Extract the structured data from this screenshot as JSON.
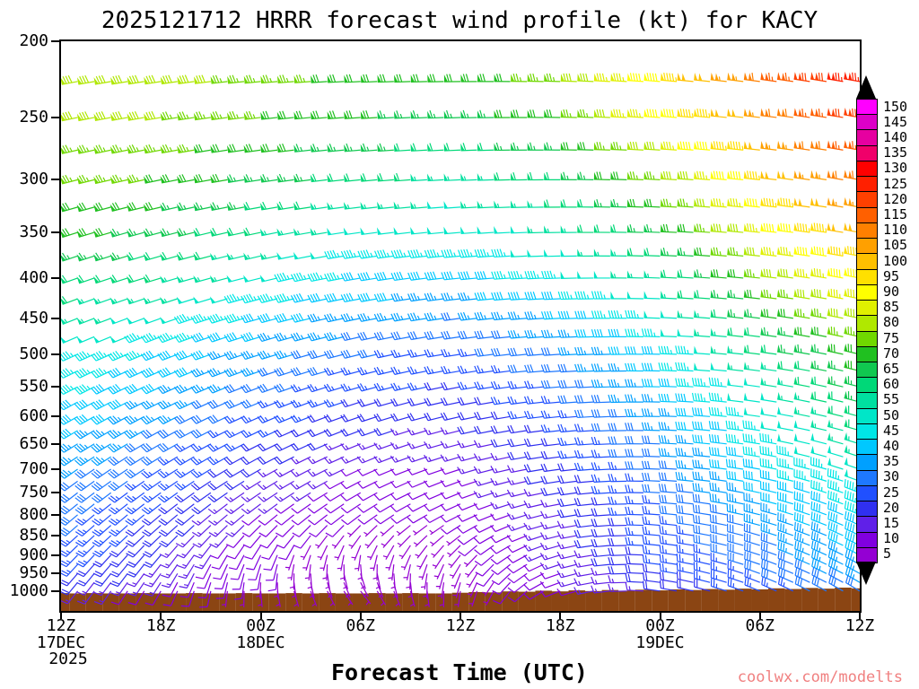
{
  "title": "2025121712 HRRR forecast wind profile (kt) for KACY",
  "watermark": "coolwx.com/modelts",
  "y_axis": {
    "tick_values": [
      200,
      250,
      300,
      350,
      400,
      450,
      500,
      550,
      600,
      650,
      700,
      750,
      800,
      850,
      900,
      950,
      1000
    ],
    "tick_labels": [
      "200",
      "250",
      "300",
      "350",
      "400",
      "450",
      "500",
      "550",
      "600",
      "650",
      "700",
      "750",
      "800",
      "850",
      "900",
      "950",
      "1000"
    ]
  },
  "x_axis": {
    "title": "Forecast Time (UTC)",
    "tick_hours": [
      0,
      6,
      12,
      18,
      24,
      30,
      36,
      42,
      48
    ],
    "tick_labels": [
      "12Z",
      "18Z",
      "00Z",
      "06Z",
      "12Z",
      "18Z",
      "00Z",
      "06Z",
      "12Z"
    ],
    "date_labels": [
      {
        "hour": 0,
        "line1": "17DEC",
        "line2": "2025"
      },
      {
        "hour": 12,
        "line1": "18DEC",
        "line2": ""
      },
      {
        "hour": 36,
        "line1": "19DEC",
        "line2": ""
      }
    ]
  },
  "colorbar": {
    "units": "kt",
    "values": [
      5,
      10,
      15,
      20,
      25,
      30,
      35,
      40,
      45,
      50,
      55,
      60,
      65,
      70,
      75,
      80,
      85,
      90,
      95,
      100,
      105,
      110,
      115,
      120,
      125,
      130,
      135,
      140,
      145,
      150
    ],
    "colors": [
      "#9400D3",
      "#8000E0",
      "#6020E8",
      "#3030F0",
      "#2050FF",
      "#1E78FF",
      "#00A0FF",
      "#00C8FF",
      "#00E6E6",
      "#00E6C8",
      "#00E0A0",
      "#00D878",
      "#10C850",
      "#20C020",
      "#70D800",
      "#B0E800",
      "#E0F000",
      "#FFFF00",
      "#FFE000",
      "#FFC000",
      "#FFA000",
      "#FF8000",
      "#FF6000",
      "#FF4000",
      "#FF2000",
      "#FF0000",
      "#F0006A",
      "#E600A0",
      "#DC00C8",
      "#FF00FF"
    ],
    "over_color": "#000000",
    "under_color": "#000000"
  },
  "terrain_color": "#8B4513",
  "chart_data": {
    "type": "wind-barb-time-height",
    "title": "2025121712 HRRR forecast wind profile (kt) for KACY",
    "model": "HRRR",
    "station": "KACY",
    "init_time": "2025121712",
    "units": "kt",
    "y_scale": "log-pressure",
    "ylim_hpa": [
      200,
      1060
    ],
    "xlim_hours": [
      0,
      48
    ],
    "barb_time_step_hours": 1,
    "barb_level_step_hpa": 25,
    "barb_level_top_hpa": 225,
    "barb_level_bottom_hpa": 1000,
    "x_hours": [
      0,
      6,
      12,
      18,
      24,
      30,
      36,
      42,
      48
    ],
    "x_time_labels": [
      "12Z 17DEC",
      "18Z 17DEC",
      "00Z 18DEC",
      "06Z 18DEC",
      "12Z 18DEC",
      "18Z 18DEC",
      "00Z 19DEC",
      "06Z 19DEC",
      "12Z 19DEC"
    ],
    "pressure_levels_hpa": [
      200,
      250,
      300,
      350,
      400,
      450,
      500,
      550,
      600,
      650,
      700,
      750,
      800,
      850,
      900,
      950,
      1000
    ],
    "wind_speed_kt": [
      [
        85,
        82,
        78,
        72,
        70,
        80,
        95,
        115,
        130
      ],
      [
        80,
        78,
        73,
        68,
        65,
        72,
        88,
        105,
        122
      ],
      [
        75,
        72,
        66,
        60,
        55,
        62,
        76,
        95,
        110
      ],
      [
        70,
        65,
        58,
        50,
        48,
        54,
        66,
        85,
        100
      ],
      [
        62,
        58,
        50,
        42,
        40,
        46,
        56,
        75,
        90
      ],
      [
        55,
        50,
        42,
        35,
        32,
        38,
        48,
        66,
        80
      ],
      [
        48,
        42,
        35,
        28,
        26,
        32,
        42,
        58,
        72
      ],
      [
        45,
        38,
        30,
        24,
        22,
        28,
        38,
        52,
        66
      ],
      [
        42,
        34,
        26,
        20,
        18,
        25,
        35,
        48,
        60
      ],
      [
        38,
        30,
        22,
        16,
        15,
        22,
        32,
        45,
        55
      ],
      [
        35,
        27,
        18,
        12,
        12,
        20,
        30,
        42,
        50
      ],
      [
        32,
        24,
        15,
        10,
        10,
        18,
        28,
        38,
        46
      ],
      [
        30,
        22,
        12,
        8,
        8,
        16,
        26,
        35,
        43
      ],
      [
        28,
        20,
        10,
        6,
        7,
        15,
        25,
        32,
        40
      ],
      [
        26,
        18,
        8,
        5,
        6,
        14,
        24,
        30,
        38
      ],
      [
        23,
        15,
        8,
        5,
        6,
        12,
        22,
        28,
        35
      ],
      [
        16,
        10,
        6,
        5,
        5,
        10,
        18,
        25,
        30
      ]
    ],
    "wind_dir_from_deg": [
      [
        260,
        262,
        265,
        268,
        270,
        272,
        275,
        278,
        280
      ],
      [
        258,
        260,
        263,
        266,
        268,
        271,
        274,
        277,
        280
      ],
      [
        255,
        258,
        261,
        264,
        267,
        270,
        273,
        276,
        280
      ],
      [
        252,
        255,
        258,
        262,
        265,
        269,
        272,
        276,
        280
      ],
      [
        250,
        253,
        256,
        260,
        264,
        268,
        272,
        276,
        281
      ],
      [
        248,
        250,
        254,
        258,
        262,
        267,
        272,
        277,
        282
      ],
      [
        245,
        248,
        252,
        256,
        261,
        266,
        271,
        277,
        283
      ],
      [
        242,
        245,
        249,
        254,
        259,
        265,
        271,
        278,
        284
      ],
      [
        240,
        242,
        246,
        251,
        257,
        264,
        271,
        278,
        285
      ],
      [
        238,
        240,
        243,
        248,
        255,
        263,
        272,
        279,
        287
      ],
      [
        235,
        237,
        240,
        245,
        252,
        262,
        272,
        280,
        289
      ],
      [
        232,
        234,
        236,
        240,
        248,
        260,
        273,
        282,
        291
      ],
      [
        230,
        230,
        230,
        233,
        243,
        258,
        274,
        284,
        293
      ],
      [
        228,
        226,
        220,
        216,
        232,
        256,
        275,
        286,
        295
      ],
      [
        225,
        220,
        205,
        188,
        218,
        253,
        276,
        288,
        297
      ],
      [
        222,
        215,
        190,
        162,
        202,
        251,
        277,
        290,
        299
      ],
      [
        220,
        210,
        175,
        142,
        188,
        249,
        278,
        292,
        301
      ]
    ],
    "surface_pressure_hpa": [
      1006,
      1007,
      1006,
      1007,
      1007,
      1006,
      1007,
      1007,
      1006,
      1007,
      1007,
      1006,
      1007,
      1007,
      1006,
      1007,
      1006,
      1007,
      1007,
      1006,
      1007,
      1006,
      1007,
      1007,
      1005,
      1003,
      1004,
      1001,
      1002,
      999,
      1001,
      998,
      1000,
      997,
      999,
      996,
      998,
      995,
      997,
      994,
      996,
      993,
      995,
      992,
      994,
      991,
      993,
      990,
      992
    ],
    "speed_color_values_kt": [
      5,
      10,
      15,
      20,
      25,
      30,
      35,
      40,
      45,
      50,
      55,
      60,
      65,
      70,
      75,
      80,
      85,
      90,
      95,
      100,
      105,
      110,
      115,
      120,
      125,
      130,
      135,
      140,
      145,
      150
    ]
  }
}
